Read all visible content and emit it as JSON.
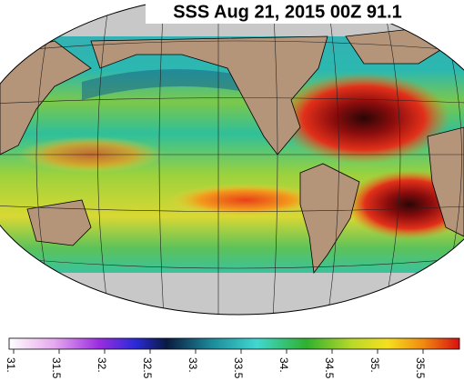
{
  "title": "SSS Aug 21, 2015 00Z 91.1",
  "colorbar": {
    "range": [
      30.95,
      35.9
    ],
    "ticks": [
      {
        "value": 31,
        "label": "31."
      },
      31.5,
      {
        "value": 32,
        "label": "32."
      },
      32.5,
      {
        "value": 33,
        "label": "33."
      },
      33.5,
      {
        "value": 34,
        "label": "34."
      },
      34.5,
      {
        "value": 35,
        "label": "35."
      },
      35.5
    ]
  }
}
